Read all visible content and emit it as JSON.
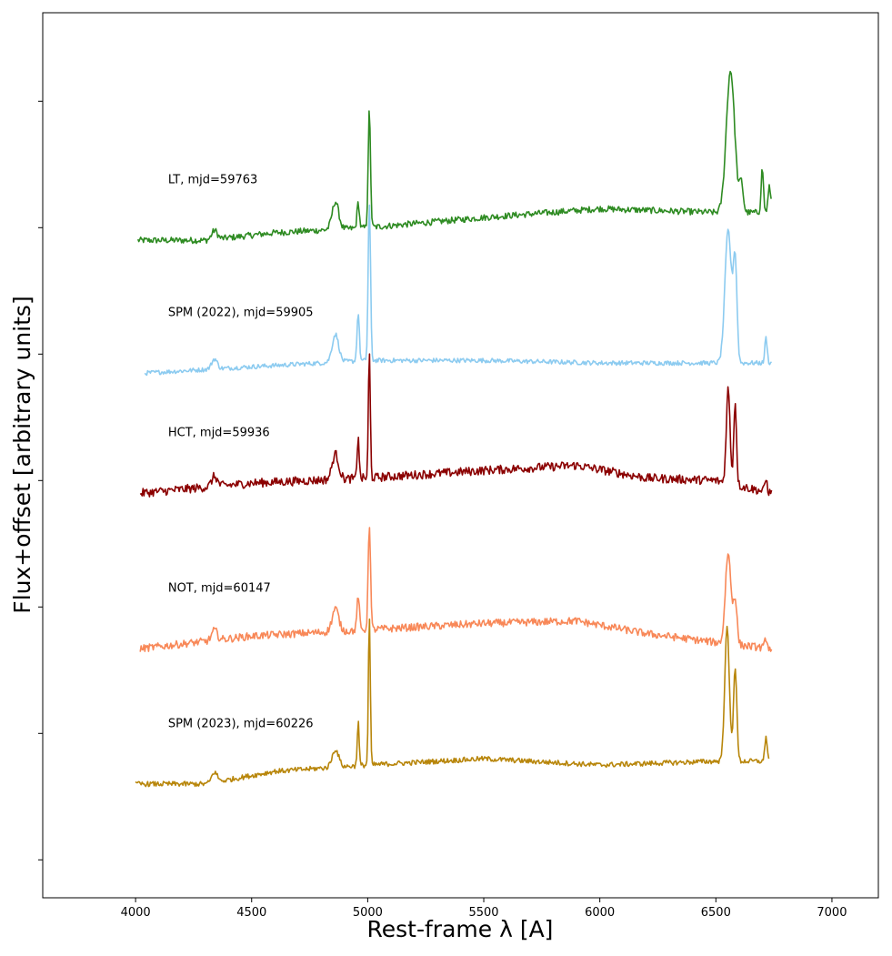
{
  "chart_data": {
    "type": "line",
    "xlabel": "Rest-frame λ [A]",
    "ylabel": "Flux+offset [arbitrary units]",
    "xlim": [
      3600,
      7200
    ],
    "xticks": [
      4000,
      4500,
      5000,
      5500,
      6000,
      6500,
      7000
    ],
    "ylim": [
      -0.3,
      6.7
    ],
    "yticks": [
      0,
      1,
      2,
      3,
      4,
      5,
      6
    ],
    "ytick_labels_shown": false,
    "grid": false,
    "legend": "none",
    "series": [
      {
        "name": "LT, mjd=59763",
        "color": "#2e8b22",
        "x_range": [
          4010,
          6740
        ],
        "offset": 4.9,
        "noise": 0.025,
        "continuum": [
          [
            4010,
            0.0
          ],
          [
            4300,
            0.0
          ],
          [
            4600,
            0.06
          ],
          [
            5000,
            0.1
          ],
          [
            5500,
            0.18
          ],
          [
            6000,
            0.25
          ],
          [
            6500,
            0.22
          ],
          [
            6740,
            0.22
          ]
        ],
        "lines": [
          [
            4340,
            0.07,
            12
          ],
          [
            4861,
            0.22,
            14
          ],
          [
            4959,
            0.2,
            5
          ],
          [
            5007,
            0.92,
            5
          ],
          [
            6563,
            1.12,
            18
          ],
          [
            6610,
            0.22,
            8
          ],
          [
            6700,
            0.35,
            5
          ],
          [
            6731,
            0.2,
            6
          ]
        ]
      },
      {
        "name": "SPM (2022), mjd=59905",
        "color": "#8ccbf0",
        "x_range": [
          4040,
          6740
        ],
        "offset": 3.85,
        "noise": 0.018,
        "continuum": [
          [
            4040,
            0.0
          ],
          [
            4500,
            0.05
          ],
          [
            5000,
            0.1
          ],
          [
            5500,
            0.1
          ],
          [
            6000,
            0.08
          ],
          [
            6500,
            0.08
          ],
          [
            6740,
            0.08
          ]
        ],
        "lines": [
          [
            4340,
            0.08,
            12
          ],
          [
            4861,
            0.22,
            14
          ],
          [
            4959,
            0.38,
            5
          ],
          [
            5007,
            1.25,
            5
          ],
          [
            6553,
            1.05,
            14
          ],
          [
            6583,
            0.78,
            8
          ],
          [
            6716,
            0.2,
            5
          ]
        ]
      },
      {
        "name": "HCT, mjd=59936",
        "color": "#8b0000",
        "x_range": [
          4020,
          6740
        ],
        "offset": 2.9,
        "noise": 0.035,
        "continuum": [
          [
            4020,
            0.0
          ],
          [
            4500,
            0.08
          ],
          [
            5000,
            0.12
          ],
          [
            5500,
            0.18
          ],
          [
            5900,
            0.22
          ],
          [
            6200,
            0.12
          ],
          [
            6500,
            0.1
          ],
          [
            6740,
            0.0
          ]
        ],
        "lines": [
          [
            4340,
            0.08,
            12
          ],
          [
            4861,
            0.2,
            14
          ],
          [
            4959,
            0.35,
            4
          ],
          [
            5007,
            1.0,
            4
          ],
          [
            6553,
            0.75,
            8
          ],
          [
            6583,
            0.65,
            6
          ],
          [
            6716,
            0.1,
            5
          ]
        ]
      },
      {
        "name": "NOT, mjd=60147",
        "color": "#f88858",
        "x_range": [
          4020,
          6740
        ],
        "offset": 1.67,
        "noise": 0.03,
        "continuum": [
          [
            4020,
            0.0
          ],
          [
            4500,
            0.1
          ],
          [
            5000,
            0.15
          ],
          [
            5500,
            0.2
          ],
          [
            5900,
            0.22
          ],
          [
            6200,
            0.12
          ],
          [
            6500,
            0.05
          ],
          [
            6740,
            0.0
          ]
        ],
        "lines": [
          [
            4340,
            0.08,
            12
          ],
          [
            4861,
            0.18,
            14
          ],
          [
            4959,
            0.28,
            5
          ],
          [
            5007,
            0.85,
            5
          ],
          [
            6553,
            0.72,
            12
          ],
          [
            6583,
            0.35,
            8
          ],
          [
            6716,
            0.08,
            5
          ]
        ]
      },
      {
        "name": "SPM (2023), mjd=60226",
        "color": "#b8860b",
        "x_range": [
          4000,
          6730
        ],
        "offset": 0.6,
        "noise": 0.02,
        "continuum": [
          [
            4000,
            0.0
          ],
          [
            4300,
            0.0
          ],
          [
            4600,
            0.1
          ],
          [
            5000,
            0.15
          ],
          [
            5500,
            0.2
          ],
          [
            6000,
            0.15
          ],
          [
            6500,
            0.18
          ],
          [
            6730,
            0.18
          ]
        ],
        "lines": [
          [
            4340,
            0.08,
            12
          ],
          [
            4861,
            0.14,
            14
          ],
          [
            4959,
            0.35,
            4
          ],
          [
            5007,
            1.18,
            4
          ],
          [
            6548,
            1.05,
            10
          ],
          [
            6583,
            0.75,
            7
          ],
          [
            6716,
            0.2,
            5
          ]
        ]
      }
    ]
  }
}
